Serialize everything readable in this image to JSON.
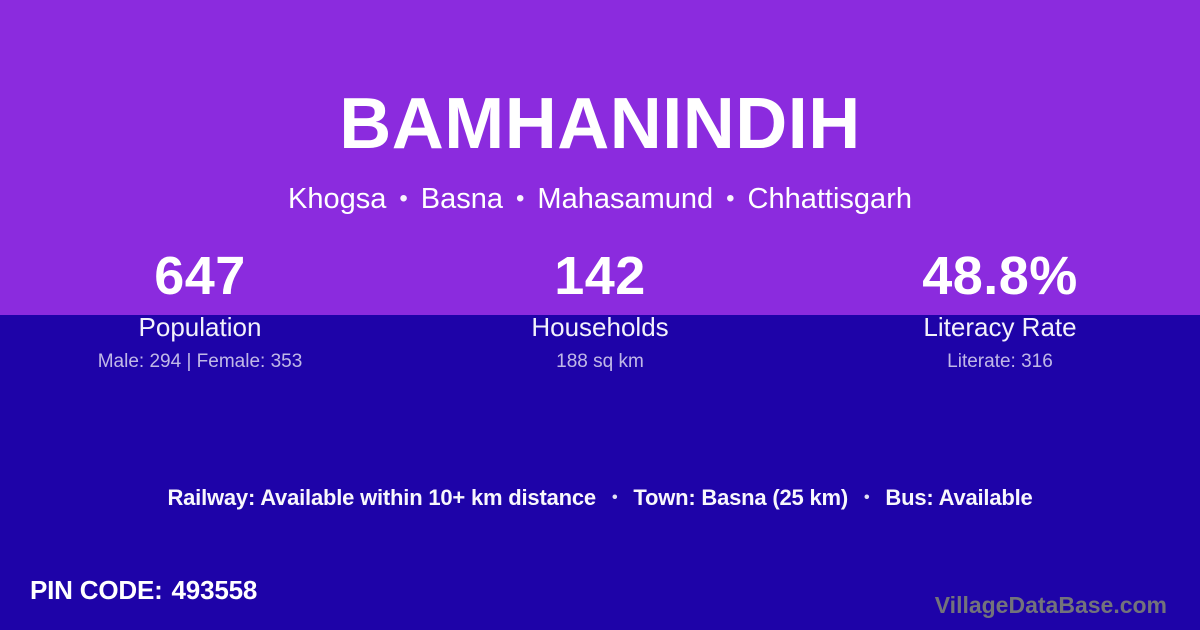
{
  "header": {
    "village_name": "BAMHANINDIH",
    "location_parts": [
      "Khogsa",
      "Basna",
      "Mahasamund",
      "Chhattisgarh"
    ]
  },
  "separators": {
    "dot": "•"
  },
  "stats": [
    {
      "value": "647",
      "label": "Population",
      "detail": "Male: 294 | Female: 353"
    },
    {
      "value": "142",
      "label": "Households",
      "detail": "188 sq km"
    },
    {
      "value": "48.8%",
      "label": "Literacy Rate",
      "detail": "Literate: 316"
    }
  ],
  "transport": {
    "parts": [
      "Railway: Available within 10+ km distance",
      "Town: Basna (25 km)",
      "Bus: Available"
    ]
  },
  "pincode": {
    "label": "PIN CODE:",
    "value": "493558"
  },
  "footer": {
    "watermark": "VillageDataBase.com"
  },
  "colors": {
    "top_background": "#8B2BDE",
    "bottom_background": "#1E03A8",
    "text": "#FFFFFF",
    "muted_text": "rgba(255,255,255,0.72)",
    "watermark_text": "#73737B"
  }
}
